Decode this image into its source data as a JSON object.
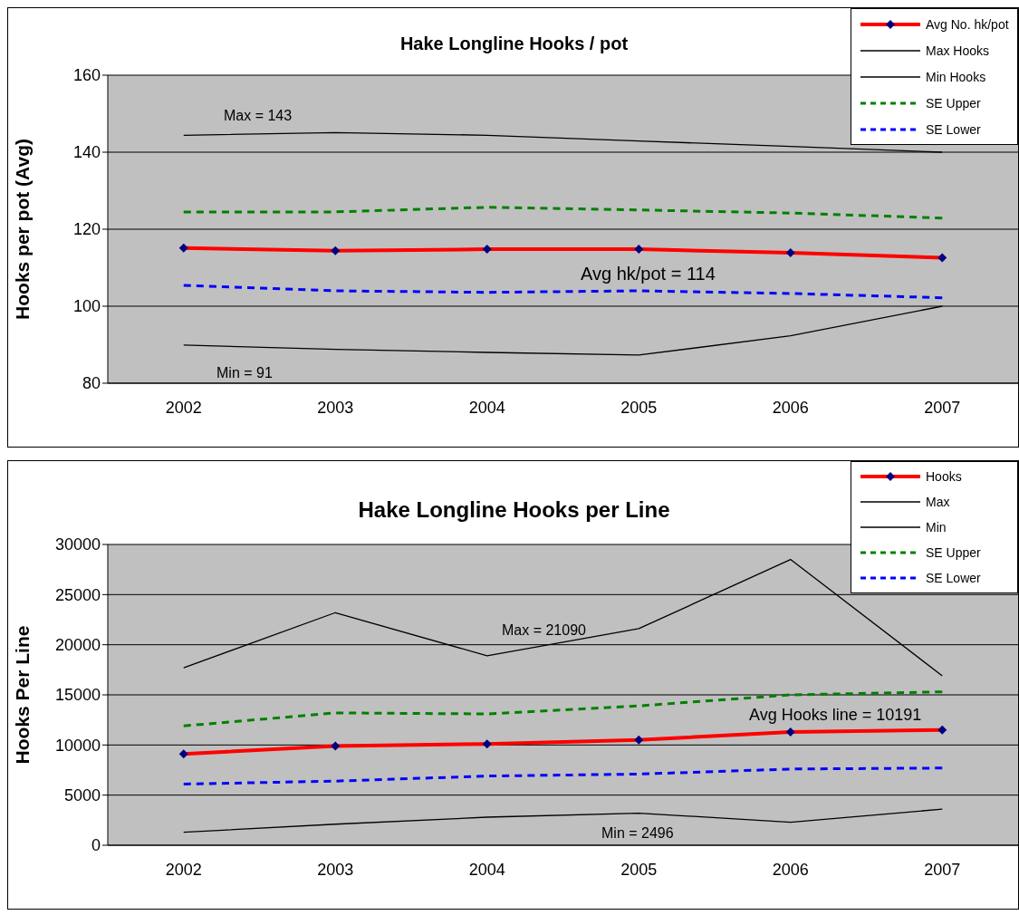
{
  "chart_data": [
    {
      "type": "line",
      "title": "Hake Longline Hooks / pot",
      "ylabel": "Hooks per pot (Avg)",
      "categories": [
        "2002",
        "2003",
        "2004",
        "2005",
        "2006",
        "2007"
      ],
      "ylim": [
        80,
        160
      ],
      "yticks": [
        80,
        100,
        120,
        140,
        160
      ],
      "grid": "y",
      "legend": "top right",
      "series": [
        {
          "name": "Avg No. hk/pot",
          "color": "#ff0000",
          "marker": "diamond",
          "line_style": "solid",
          "values": [
            115.1,
            114.4,
            114.8,
            114.8,
            113.9,
            112.6
          ]
        },
        {
          "name": "Max Hooks",
          "color": "#000000",
          "marker": "none",
          "line_style": "solid",
          "values": [
            144.4,
            145.1,
            144.4,
            142.9,
            141.5,
            140.0
          ]
        },
        {
          "name": "Min Hooks",
          "color": "#000000",
          "marker": "none",
          "line_style": "solid",
          "values": [
            89.9,
            88.8,
            88.0,
            87.3,
            92.3,
            100.0
          ]
        },
        {
          "name": "SE Upper",
          "color": "#008000",
          "marker": "none",
          "line_style": "dashed",
          "values": [
            124.5,
            124.5,
            125.7,
            125.0,
            124.2,
            122.9
          ]
        },
        {
          "name": "SE Lower",
          "color": "#0000ff",
          "marker": "none",
          "line_style": "dashed",
          "values": [
            105.4,
            104.0,
            103.6,
            104.0,
            103.3,
            102.2
          ]
        }
      ],
      "annotations": [
        "Max = 143",
        "Avg hk/pot = 114",
        "Min = 91"
      ]
    },
    {
      "type": "line",
      "title": "Hake Longline Hooks per Line",
      "ylabel": "Hooks Per Line",
      "categories": [
        "2002",
        "2003",
        "2004",
        "2005",
        "2006",
        "2007"
      ],
      "ylim": [
        0,
        30000
      ],
      "yticks": [
        0,
        5000,
        10000,
        15000,
        20000,
        25000,
        30000
      ],
      "grid": "y",
      "legend": "top right",
      "series": [
        {
          "name": "Hooks",
          "color": "#ff0000",
          "marker": "diamond",
          "line_style": "solid",
          "values": [
            9100,
            9900,
            10100,
            10500,
            11300,
            11500
          ]
        },
        {
          "name": "Max",
          "color": "#000000",
          "marker": "none",
          "line_style": "solid",
          "values": [
            17700,
            23200,
            18900,
            21600,
            28500,
            16900
          ]
        },
        {
          "name": "Min",
          "color": "#000000",
          "marker": "none",
          "line_style": "solid",
          "values": [
            1300,
            2100,
            2800,
            3200,
            2300,
            3600
          ]
        },
        {
          "name": "SE Upper",
          "color": "#008000",
          "marker": "none",
          "line_style": "dashed",
          "values": [
            11900,
            13200,
            13100,
            13900,
            15000,
            15300
          ]
        },
        {
          "name": "SE Lower",
          "color": "#0000ff",
          "marker": "none",
          "line_style": "dashed",
          "values": [
            6100,
            6400,
            6900,
            7100,
            7600,
            7700
          ]
        }
      ],
      "annotations": [
        "Max = 21090",
        "Avg Hooks line = 10191",
        "Min = 2496"
      ]
    }
  ]
}
